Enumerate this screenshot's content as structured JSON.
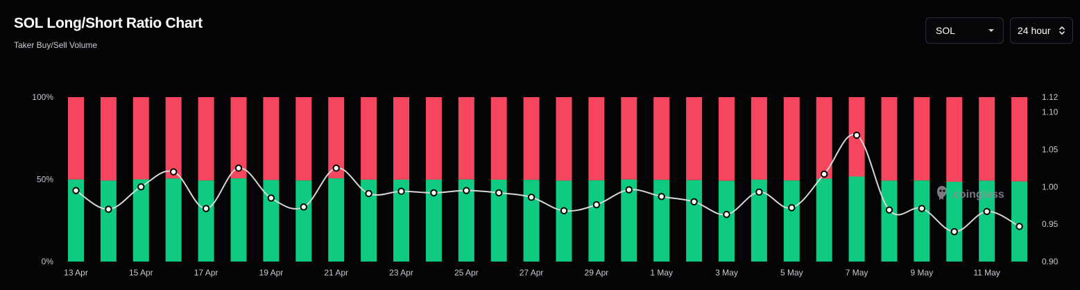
{
  "header": {
    "title": "SOL Long/Short Ratio Chart",
    "subtitle": "Taker Buy/Sell Volume"
  },
  "controls": {
    "coin_select": {
      "value": "SOL",
      "icon": "caret-down-icon"
    },
    "period_select": {
      "value": "24 hour",
      "icon": "up-down-chevron-icon"
    }
  },
  "watermark": {
    "text": "coinglass",
    "icon": "coinglass-logo-icon"
  },
  "colors": {
    "long": "#0ecb81",
    "short": "#f6465d",
    "ratio_line": "#d9d9d9",
    "background": "#040406"
  },
  "chart_data": {
    "type": "bar",
    "stacked_percent": true,
    "x": [
      "13 Apr",
      "14 Apr",
      "15 Apr",
      "16 Apr",
      "17 Apr",
      "18 Apr",
      "19 Apr",
      "20 Apr",
      "21 Apr",
      "22 Apr",
      "23 Apr",
      "24 Apr",
      "25 Apr",
      "26 Apr",
      "27 Apr",
      "28 Apr",
      "29 Apr",
      "30 Apr",
      "1 May",
      "2 May",
      "3 May",
      "4 May",
      "5 May",
      "6 May",
      "7 May",
      "8 May",
      "9 May",
      "10 May",
      "11 May",
      "12 May"
    ],
    "x_tick_labels": [
      "13 Apr",
      "15 Apr",
      "17 Apr",
      "19 Apr",
      "21 Apr",
      "23 Apr",
      "25 Apr",
      "27 Apr",
      "29 Apr",
      "1 May",
      "3 May",
      "5 May",
      "7 May",
      "9 May",
      "11 May"
    ],
    "series": [
      {
        "name": "Long",
        "axis": "left",
        "values": [
          49.9,
          49.2,
          50.0,
          50.5,
          49.3,
          50.6,
          49.6,
          49.3,
          50.6,
          49.8,
          49.8,
          49.8,
          49.9,
          49.8,
          49.7,
          49.2,
          49.4,
          49.9,
          49.7,
          49.5,
          49.1,
          49.8,
          49.3,
          50.4,
          51.7,
          49.2,
          49.3,
          48.5,
          49.2,
          48.7
        ]
      },
      {
        "name": "Short",
        "axis": "left",
        "values": [
          50.1,
          50.8,
          50.0,
          49.5,
          50.7,
          49.4,
          50.4,
          50.7,
          49.4,
          50.2,
          50.2,
          50.2,
          50.1,
          50.2,
          50.3,
          50.8,
          50.6,
          50.1,
          50.3,
          50.5,
          50.9,
          50.2,
          50.7,
          49.6,
          48.3,
          50.8,
          50.7,
          51.5,
          50.8,
          51.3
        ]
      },
      {
        "name": "Long/Short Ratio",
        "type": "line",
        "axis": "right",
        "values": [
          0.995,
          0.97,
          1.0,
          1.02,
          0.971,
          1.025,
          0.985,
          0.973,
          1.025,
          0.991,
          0.994,
          0.992,
          0.995,
          0.992,
          0.986,
          0.968,
          0.976,
          0.996,
          0.987,
          0.98,
          0.963,
          0.993,
          0.972,
          1.017,
          1.069,
          0.969,
          0.971,
          0.94,
          0.967,
          0.947
        ]
      }
    ],
    "left_axis": {
      "ticks": [
        "0%",
        "50%",
        "100%"
      ],
      "range": [
        0,
        100
      ]
    },
    "right_axis": {
      "ticks": [
        "0.90",
        "0.95",
        "1.00",
        "1.05",
        "1.10",
        "1.12"
      ],
      "range": [
        0.9,
        1.12
      ]
    },
    "grid": false
  }
}
